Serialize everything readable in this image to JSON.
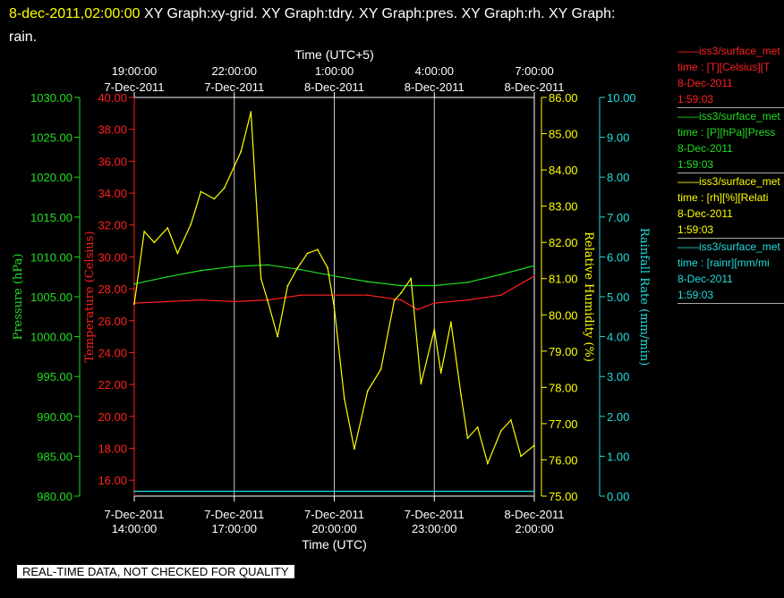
{
  "header": {
    "timestamp": "8-dec-2011,02:00:00",
    "title_line1": "XY Graph:xy-grid.  XY Graph:tdry.  XY Graph:pres.  XY Graph:rh.  XY Graph:",
    "title_line2": "rain."
  },
  "legend": [
    {
      "color": "#ff2020",
      "lines": [
        "——iss3/surface_met",
        "time : [T][Celsius][T",
        "8-Dec-2011",
        "1:59:03"
      ]
    },
    {
      "color": "#22dd22",
      "lines": [
        "——iss3/surface_met",
        "time : [P][hPa][Press",
        "8-Dec-2011",
        "1:59:03"
      ]
    },
    {
      "color": "#ffff00",
      "lines": [
        "——iss3/surface_met",
        "time : [rh][%][Relati",
        "8-Dec-2011",
        "1:59:03"
      ]
    },
    {
      "color": "#22dddd",
      "lines": [
        "——iss3/surface_met",
        "time : [rainr][mm/mi",
        "8-Dec-2011",
        "1:59:03"
      ]
    }
  ],
  "footer": "REAL-TIME DATA, NOT CHECKED FOR QUALITY",
  "chart_data": {
    "type": "line",
    "x_bottom": {
      "label": "Time (UTC)",
      "ticks": [
        [
          "7-Dec-2011",
          "14:00:00"
        ],
        [
          "7-Dec-2011",
          "17:00:00"
        ],
        [
          "7-Dec-2011",
          "20:00:00"
        ],
        [
          "7-Dec-2011",
          "23:00:00"
        ],
        [
          "8-Dec-2011",
          "2:00:00"
        ]
      ],
      "range_hours": [
        14,
        26
      ]
    },
    "x_top": {
      "label": "Time (UTC+5)",
      "ticks": [
        [
          "19:00:00",
          "7-Dec-2011"
        ],
        [
          "22:00:00",
          "7-Dec-2011"
        ],
        [
          "1:00:00",
          "8-Dec-2011"
        ],
        [
          "4:00:00",
          "8-Dec-2011"
        ],
        [
          "7:00:00",
          "8-Dec-2011"
        ]
      ]
    },
    "axes": {
      "pressure": {
        "label": "Pressure (hPa)",
        "color": "#22dd22",
        "range": [
          980,
          1030
        ],
        "ticks": [
          "1030.00",
          "1025.00",
          "1020.00",
          "1015.00",
          "1010.00",
          "1005.00",
          "1000.00",
          "995.00",
          "990.00",
          "985.00",
          "980.00"
        ]
      },
      "temperature": {
        "label": "Temperature (Celsius)",
        "color": "#ff2020",
        "range": [
          15,
          40
        ],
        "ticks": [
          "40.00",
          "38.00",
          "36.00",
          "34.00",
          "32.00",
          "30.00",
          "28.00",
          "26.00",
          "24.00",
          "22.00",
          "20.00",
          "18.00",
          "16.00"
        ]
      },
      "humidity": {
        "label": "Relative Humidity (%)",
        "color": "#ffff00",
        "range": [
          75,
          86
        ],
        "ticks": [
          "86.00",
          "85.00",
          "84.00",
          "83.00",
          "82.00",
          "81.00",
          "80.00",
          "79.00",
          "78.00",
          "77.00",
          "76.00",
          "75.00"
        ]
      },
      "rain": {
        "label": "Rainfall Rate (mm/min)",
        "color": "#22dddd",
        "range": [
          0,
          10
        ],
        "ticks": [
          "10.00",
          "9.00",
          "8.00",
          "7.00",
          "6.00",
          "5.00",
          "4.00",
          "3.00",
          "2.00",
          "1.00",
          "0.00"
        ]
      }
    },
    "grid": "vertical",
    "series": [
      {
        "name": "surface_met T (Celsius)",
        "axis": "temperature",
        "color": "#ff2020",
        "x": [
          14,
          15,
          16,
          17,
          18,
          19,
          20,
          21,
          22,
          22.5,
          23,
          24,
          25,
          26
        ],
        "y": [
          27.1,
          27.2,
          27.3,
          27.2,
          27.3,
          27.6,
          27.6,
          27.6,
          27.3,
          26.7,
          27.1,
          27.3,
          27.6,
          28.8
        ]
      },
      {
        "name": "surface_met P (hPa)",
        "axis": "pressure",
        "color": "#22dd22",
        "x": [
          14,
          15,
          16,
          17,
          18,
          19,
          20,
          21,
          22,
          23,
          24,
          25,
          26
        ],
        "y": [
          1006.6,
          1007.5,
          1008.3,
          1008.8,
          1009.0,
          1008.4,
          1007.6,
          1006.9,
          1006.4,
          1006.4,
          1006.8,
          1007.8,
          1008.9
        ]
      },
      {
        "name": "surface_met rh (%)",
        "axis": "humidity",
        "color": "#ffff00",
        "x": [
          14,
          14.3,
          14.6,
          15,
          15.3,
          15.7,
          16,
          16.4,
          16.7,
          17,
          17.2,
          17.5,
          17.8,
          18,
          18.3,
          18.6,
          18.9,
          19.2,
          19.5,
          19.8,
          20,
          20.3,
          20.6,
          21,
          21.4,
          21.8,
          22,
          22.3,
          22.6,
          23,
          23.2,
          23.5,
          23.8,
          24,
          24.3,
          24.6,
          25,
          25.3,
          25.6,
          26
        ],
        "y": [
          80.3,
          82.3,
          82.0,
          82.4,
          81.7,
          82.5,
          83.4,
          83.2,
          83.5,
          84.1,
          84.5,
          85.6,
          81.0,
          80.4,
          79.4,
          80.8,
          81.3,
          81.7,
          81.8,
          81.3,
          80.2,
          77.7,
          76.3,
          77.9,
          78.5,
          80.4,
          80.6,
          81.0,
          78.1,
          79.6,
          78.4,
          79.8,
          77.8,
          76.6,
          76.9,
          75.9,
          76.8,
          77.1,
          76.1,
          76.4
        ]
      },
      {
        "name": "surface_met rainr (mm/min)",
        "axis": "rain",
        "color": "#22dddd",
        "x": [
          14,
          26
        ],
        "y": [
          0.12,
          0.12
        ]
      }
    ]
  }
}
